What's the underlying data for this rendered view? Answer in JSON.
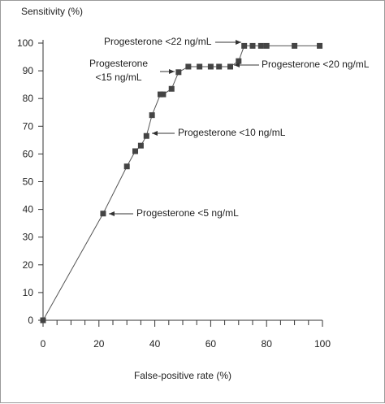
{
  "chart_data": {
    "type": "line",
    "ylabel": "Sensitivity (%)",
    "xlabel": "False-positive rate (%)",
    "xlim": [
      0,
      100
    ],
    "ylim": [
      0,
      100
    ],
    "xticks": [
      0,
      20,
      40,
      60,
      80,
      100
    ],
    "yticks": [
      0,
      10,
      20,
      30,
      40,
      50,
      60,
      70,
      80,
      90,
      100
    ],
    "grid": false,
    "series": [
      {
        "marker": "square",
        "color": "#444444",
        "points": [
          [
            0,
            0
          ],
          [
            21.5,
            38.5
          ],
          [
            30,
            55.5
          ],
          [
            33,
            61
          ],
          [
            35,
            63
          ],
          [
            37,
            66.5
          ],
          [
            39,
            74
          ],
          [
            42,
            81.5
          ],
          [
            43,
            81.5
          ],
          [
            46,
            83.5
          ],
          [
            48.5,
            89.5
          ],
          [
            52,
            91.5
          ],
          [
            56,
            91.5
          ],
          [
            60,
            91.5
          ],
          [
            63,
            91.5
          ],
          [
            67,
            91.5
          ],
          [
            70,
            93.5
          ],
          [
            72,
            99
          ],
          [
            75,
            99
          ],
          [
            78,
            99
          ],
          [
            80,
            99
          ],
          [
            90,
            99
          ],
          [
            99,
            99
          ]
        ]
      }
    ],
    "annotations": [
      {
        "lines": [
          "Progesterone <22 ng/mL"
        ],
        "x": 72,
        "y": 99
      },
      {
        "lines": [
          "Progesterone",
          "<15 ng/mL"
        ],
        "x": 48.5,
        "y": 89.5
      },
      {
        "lines": [
          "Progesterone <20 ng/mL"
        ],
        "x": 67,
        "y": 91.5
      },
      {
        "lines": [
          "Progesterone <10 ng/mL"
        ],
        "x": 37,
        "y": 66.5
      },
      {
        "lines": [
          "Progesterone <5 ng/mL"
        ],
        "x": 21.5,
        "y": 38.5
      }
    ]
  }
}
